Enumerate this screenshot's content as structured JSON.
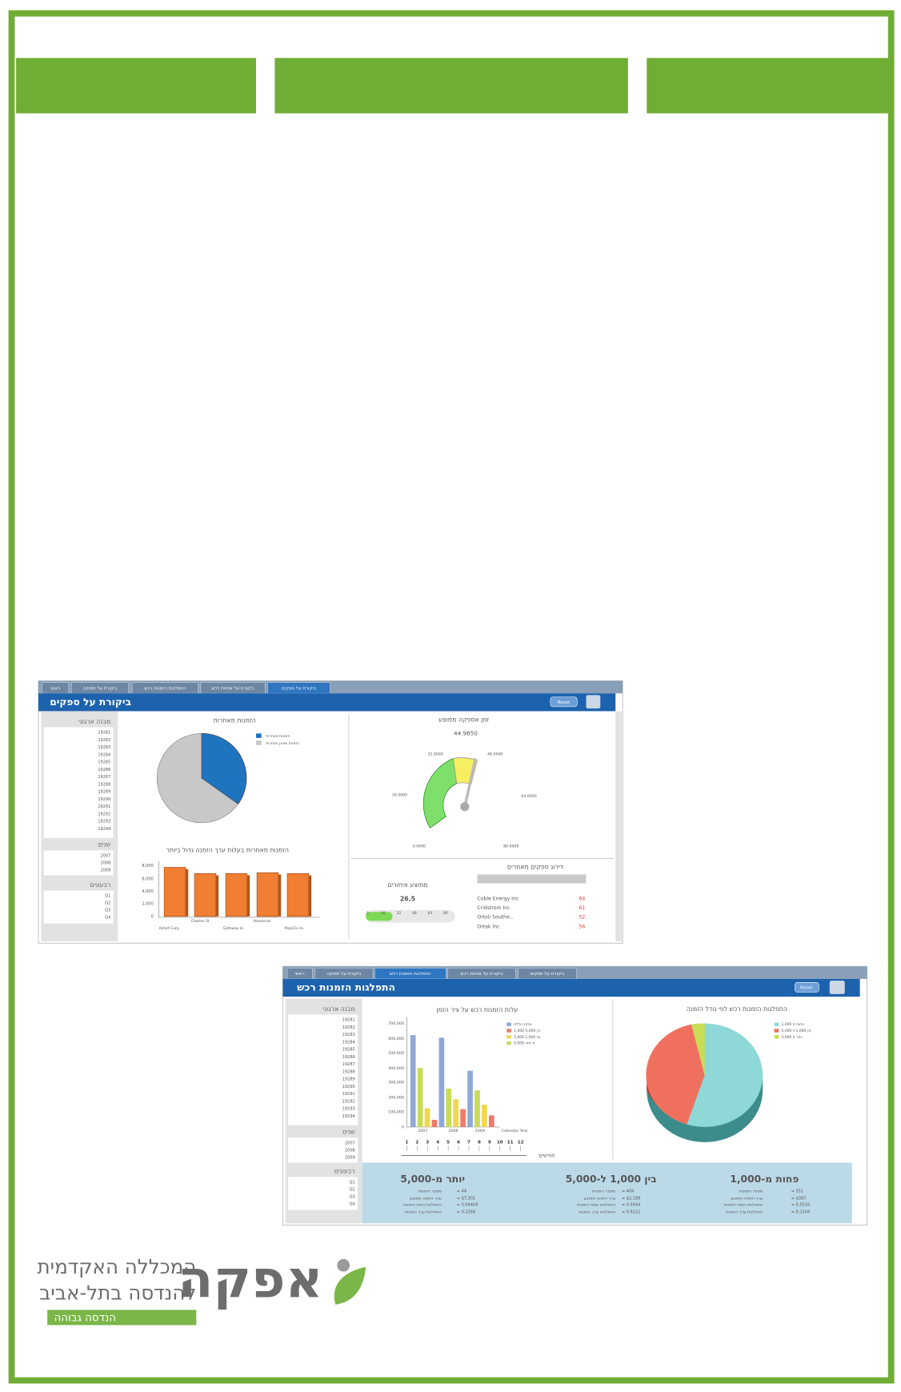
{
  "screenshot_1": {
    "tabs": [
      "ראשי",
      "ביקורת על תפוקה",
      "התפלגות הזמנות רכש",
      "ביקורת על אחזות רכש",
      "ביקורת על ספקים"
    ],
    "title": "ביקורת על ספקים",
    "reset": "Reset",
    "org_label": "מבנה ארגוני",
    "org_items": [
      "19281",
      "19282",
      "19283",
      "19284",
      "19285",
      "19286",
      "19287",
      "19288",
      "19289",
      "19290",
      "19291",
      "19292",
      "19293",
      "19294"
    ],
    "years_label": "שנים",
    "years": [
      "2007",
      "2008",
      "2009"
    ],
    "quarters_label": "רבעונים",
    "quarters": [
      "Q1",
      "Q2",
      "Q3",
      "Q4"
    ],
    "pie_title": "הזמנות מאחרות",
    "pie_legend": [
      "הזמנות מאחרות",
      "הזמנות שאינן מאחרות"
    ],
    "bar_title": "הזמנות מאחרות בעלות ערך הזמנה גדול ביותר",
    "bar_yticks": [
      "8,000",
      "6,000",
      "4,000",
      "2,000",
      "0"
    ],
    "bar_categories": [
      "Aimet Corp.",
      "Charles St.",
      "Gateway In.",
      "Homerian",
      "PepsiCo In."
    ],
    "gauge_title": "זמן אספקה ממוצע",
    "gauge_value": "44.9650",
    "gauge_ticks": [
      "0.0000",
      "16.0000",
      "32.0000",
      "48.0000",
      "64.0000",
      "80.0000"
    ],
    "ranking_title": "דירוג ספקים מאחרים",
    "ranking_names": [
      "Coble Energy Inc",
      "Cridstrom Inc",
      "Ortoli Southe...",
      "Ortak Inc"
    ],
    "ranking_values": [
      "64",
      "61",
      "52",
      "56"
    ],
    "avg_title": "ממוצע איחורים",
    "avg_value": "26.5",
    "avg_scale": [
      "0",
      "16",
      "32",
      "48",
      "64",
      "80"
    ]
  },
  "screenshot_2": {
    "tabs": [
      "ראשי",
      "ביקורת על תפוקה",
      "התפלגות הזמנות רכש",
      "ביקורת על אחזות רכש",
      "ביקורת על ספקים"
    ],
    "title": "התפלגות הזמנות רכש",
    "reset": "Reset",
    "org_label": "מבנה ארגוני",
    "org_items": [
      "19281",
      "19282",
      "19283",
      "19284",
      "19285",
      "19286",
      "19287",
      "19288",
      "19289",
      "19290",
      "19291",
      "19292",
      "19293",
      "19294"
    ],
    "years_label": "שנים",
    "years": [
      "2007",
      "2008",
      "2009"
    ],
    "quarters_label": "רבעונים",
    "quarters": [
      "Q1",
      "Q2",
      "Q3",
      "Q4"
    ],
    "bar_title": "עלות הזמנות רכש על ציר הזמן",
    "bar_yticks": [
      "700,000",
      "600,000",
      "500,000",
      "400,000",
      "300,000",
      "200,000",
      "100,000",
      "0"
    ],
    "bar_legend": [
      "עלות כוללת",
      "1,000-5,000 בין",
      "5,000 עד 1,000",
      "5,000-מ יותר"
    ],
    "years_axis": [
      "2007",
      "2008",
      "2009"
    ],
    "axis_label": "Calendar Year",
    "months": [
      "1",
      "2",
      "3",
      "4",
      "5",
      "6",
      "7",
      "8",
      "9",
      "10",
      "11",
      "12"
    ],
    "months_label": "חודשים",
    "pie_title": "התפלגות הזמנות רכש לפי גודל הזמנה",
    "pie_legend": [
      "1,000 פחות מ",
      "בין 1,000 ל 5,000",
      "יותר מ 5,000"
    ],
    "summary": [
      {
        "heading": "יותר מ-5,000",
        "labels": [
          "מספר הזמנות",
          "ערך הזמנה ממוצע",
          "התפלגות כמות הזמנות",
          "התפלגות ערך הזמנות"
        ],
        "values": [
          "= 44",
          "= $7,301",
          "= 0.04404",
          "= 0.2264"
        ]
      },
      {
        "heading": "בין 1,000 ל-5,000",
        "labels": [
          "מספר הזמנות",
          "ערך הזמנה ממוצע",
          "התפלגות כמות הזמנות",
          "התפלגות ערך הזמנות"
        ],
        "values": [
          "= 404",
          "= $2,199",
          "= 0.4044",
          "= 0.6222"
        ]
      },
      {
        "heading": "פחות מ-1,000",
        "labels": [
          "מספר הזמנות",
          "ערך הזמנה ממוצע",
          "התפלגות כמות הזמנות",
          "התפלגות ערך הזמנות"
        ],
        "values": [
          "= 551",
          "= $387",
          "= 0.5516",
          "= 0.1504"
        ]
      }
    ]
  },
  "logo": {
    "name": "אפקה",
    "line_1": "המכללה האקדמית",
    "line_2": "להנדסה בתל-אביב",
    "tagline": "הנדסה גבוהה"
  }
}
